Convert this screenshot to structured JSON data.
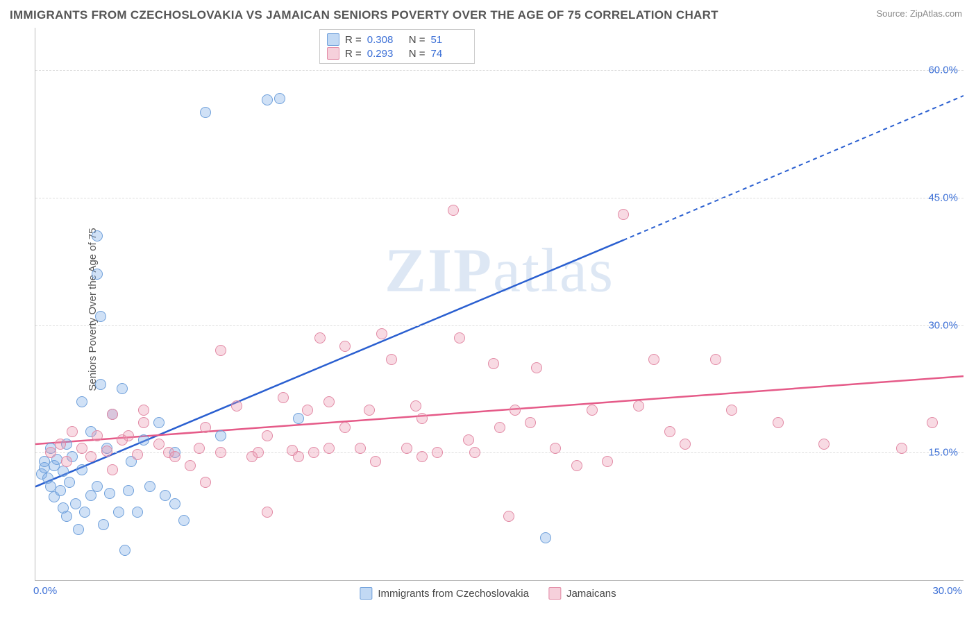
{
  "title": "IMMIGRANTS FROM CZECHOSLOVAKIA VS JAMAICAN SENIORS POVERTY OVER THE AGE OF 75 CORRELATION CHART",
  "source": "Source: ZipAtlas.com",
  "ylabel": "Seniors Poverty Over the Age of 75",
  "watermark": "ZIPatlas",
  "chart": {
    "type": "scatter",
    "xlim": [
      0,
      30
    ],
    "ylim": [
      0,
      65
    ],
    "xticks": {
      "start": "0.0%",
      "end": "30.0%"
    },
    "yticks": [
      {
        "value": 15,
        "label": "15.0%"
      },
      {
        "value": 30,
        "label": "30.0%"
      },
      {
        "value": 45,
        "label": "45.0%"
      },
      {
        "value": 60,
        "label": "60.0%"
      }
    ],
    "background_color": "#ffffff",
    "grid_color": "#dddddd",
    "axis_color": "#bbbbbb",
    "tick_label_color": "#3b6fd6"
  },
  "series": [
    {
      "name": "Immigrants from Czechoslovakia",
      "color_fill": "rgba(120,170,230,0.35)",
      "color_stroke": "#6fa0db",
      "trend_color": "#2a5fd0",
      "trend": {
        "x1": 0,
        "y1": 11,
        "x2": 19,
        "y2": 40,
        "dash_after_x": 19,
        "x3": 30,
        "y3": 57
      },
      "R": "0.308",
      "N": "51",
      "points": [
        [
          0.2,
          12.5
        ],
        [
          0.3,
          13.2
        ],
        [
          0.3,
          14.0
        ],
        [
          0.4,
          12.0
        ],
        [
          0.5,
          11.0
        ],
        [
          0.5,
          15.5
        ],
        [
          0.6,
          13.5
        ],
        [
          0.6,
          9.8
        ],
        [
          0.7,
          14.2
        ],
        [
          0.8,
          10.5
        ],
        [
          0.9,
          8.5
        ],
        [
          0.9,
          12.8
        ],
        [
          1.0,
          16.0
        ],
        [
          1.0,
          7.5
        ],
        [
          1.1,
          11.5
        ],
        [
          1.2,
          14.5
        ],
        [
          1.3,
          9.0
        ],
        [
          1.4,
          6.0
        ],
        [
          1.5,
          13.0
        ],
        [
          1.5,
          21.0
        ],
        [
          1.6,
          8.0
        ],
        [
          1.8,
          17.5
        ],
        [
          1.8,
          10.0
        ],
        [
          2.0,
          40.5
        ],
        [
          2.0,
          36.0
        ],
        [
          2.1,
          31.0
        ],
        [
          2.1,
          23.0
        ],
        [
          2.2,
          6.5
        ],
        [
          2.3,
          15.5
        ],
        [
          2.4,
          10.2
        ],
        [
          2.5,
          19.5
        ],
        [
          2.7,
          8.0
        ],
        [
          2.8,
          22.5
        ],
        [
          2.9,
          3.5
        ],
        [
          3.0,
          10.5
        ],
        [
          3.1,
          14.0
        ],
        [
          3.3,
          8.0
        ],
        [
          3.5,
          16.5
        ],
        [
          3.7,
          11.0
        ],
        [
          4.0,
          18.5
        ],
        [
          4.2,
          10.0
        ],
        [
          4.5,
          9.0
        ],
        [
          4.8,
          7.0
        ],
        [
          5.5,
          55.0
        ],
        [
          6.0,
          17.0
        ],
        [
          7.5,
          56.5
        ],
        [
          7.9,
          56.7
        ],
        [
          8.5,
          19.0
        ],
        [
          4.5,
          15.0
        ],
        [
          16.5,
          5.0
        ],
        [
          2.0,
          11.0
        ]
      ]
    },
    {
      "name": "Jamaicans",
      "color_fill": "rgba(235,150,175,0.35)",
      "color_stroke": "#e28aa5",
      "trend_color": "#e55a88",
      "trend": {
        "x1": 0,
        "y1": 16,
        "x2": 30,
        "y2": 24,
        "dash_after_x": 30,
        "x3": 30,
        "y3": 24
      },
      "R": "0.293",
      "N": "74",
      "points": [
        [
          0.5,
          15.0
        ],
        [
          0.8,
          16.0
        ],
        [
          1.0,
          14.0
        ],
        [
          1.2,
          17.5
        ],
        [
          1.5,
          15.5
        ],
        [
          1.8,
          14.5
        ],
        [
          2.0,
          17.0
        ],
        [
          2.3,
          15.2
        ],
        [
          2.5,
          19.5
        ],
        [
          2.5,
          13.0
        ],
        [
          2.8,
          16.5
        ],
        [
          3.0,
          17.0
        ],
        [
          3.3,
          14.8
        ],
        [
          3.5,
          18.5
        ],
        [
          3.5,
          20.0
        ],
        [
          4.0,
          16.0
        ],
        [
          4.3,
          15.0
        ],
        [
          4.5,
          14.5
        ],
        [
          5.0,
          13.5
        ],
        [
          5.3,
          15.5
        ],
        [
          5.5,
          11.5
        ],
        [
          5.5,
          18.0
        ],
        [
          6.0,
          15.0
        ],
        [
          6.0,
          27.0
        ],
        [
          6.5,
          20.5
        ],
        [
          7.0,
          14.5
        ],
        [
          7.2,
          15.0
        ],
        [
          7.5,
          8.0
        ],
        [
          7.5,
          17.0
        ],
        [
          8.0,
          21.5
        ],
        [
          8.3,
          15.3
        ],
        [
          8.5,
          14.5
        ],
        [
          8.8,
          20.0
        ],
        [
          9.0,
          15.0
        ],
        [
          9.2,
          28.5
        ],
        [
          9.5,
          21.0
        ],
        [
          9.5,
          15.5
        ],
        [
          10.0,
          18.0
        ],
        [
          10.0,
          27.5
        ],
        [
          10.5,
          15.5
        ],
        [
          10.8,
          20.0
        ],
        [
          11.0,
          14.0
        ],
        [
          11.2,
          29.0
        ],
        [
          11.5,
          26.0
        ],
        [
          12.0,
          15.5
        ],
        [
          12.3,
          20.5
        ],
        [
          12.5,
          19.0
        ],
        [
          12.5,
          14.5
        ],
        [
          13.0,
          15.0
        ],
        [
          13.5,
          43.5
        ],
        [
          13.7,
          28.5
        ],
        [
          14.0,
          16.5
        ],
        [
          14.2,
          15.0
        ],
        [
          14.8,
          25.5
        ],
        [
          15.0,
          18.0
        ],
        [
          15.3,
          7.5
        ],
        [
          15.5,
          20.0
        ],
        [
          16.0,
          18.5
        ],
        [
          16.2,
          25.0
        ],
        [
          16.8,
          15.5
        ],
        [
          17.5,
          13.5
        ],
        [
          18.0,
          20.0
        ],
        [
          18.5,
          14.0
        ],
        [
          19.0,
          43.0
        ],
        [
          19.5,
          20.5
        ],
        [
          20.0,
          26.0
        ],
        [
          20.5,
          17.5
        ],
        [
          21.0,
          16.0
        ],
        [
          22.0,
          26.0
        ],
        [
          22.5,
          20.0
        ],
        [
          24.0,
          18.5
        ],
        [
          25.5,
          16.0
        ],
        [
          28.0,
          15.5
        ],
        [
          29.0,
          18.5
        ]
      ]
    }
  ],
  "legend_top_labels": {
    "R": "R =",
    "N": "N ="
  },
  "legend_bottom": [
    {
      "swatch": "blue",
      "label": "Immigrants from Czechoslovakia"
    },
    {
      "swatch": "pink",
      "label": "Jamaicans"
    }
  ]
}
